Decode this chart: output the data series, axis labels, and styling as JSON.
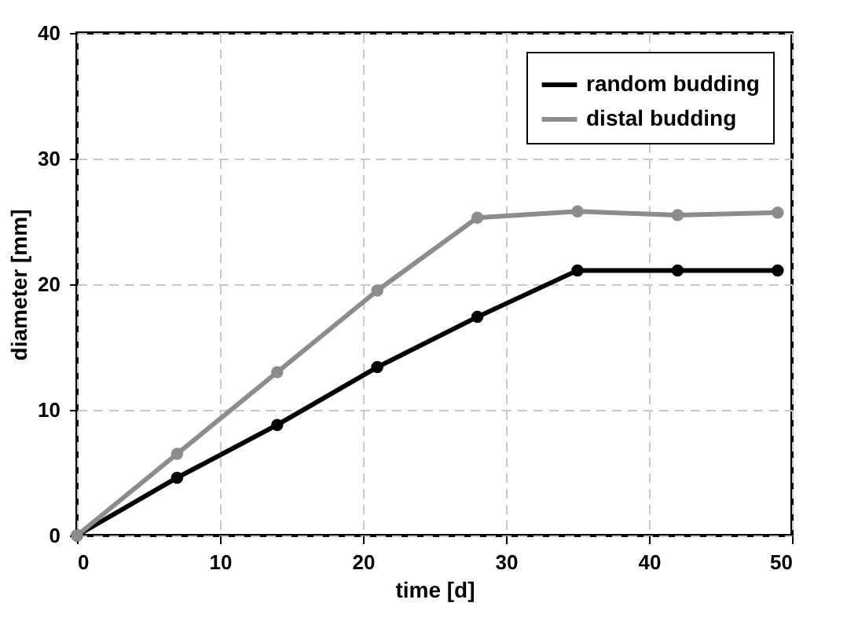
{
  "chart_data": {
    "type": "line",
    "xlabel": "time [d]",
    "ylabel": "diameter [mm]",
    "x": [
      0,
      7,
      14,
      21,
      28,
      35,
      42,
      49
    ],
    "series": [
      {
        "name": "random budding",
        "color": "#000000",
        "values": [
          0,
          4.6,
          8.8,
          13.4,
          17.4,
          21.1,
          21.1,
          21.1
        ]
      },
      {
        "name": "distal budding",
        "color": "#8c8c8c",
        "values": [
          0,
          6.5,
          13.0,
          19.5,
          25.3,
          25.8,
          25.5,
          25.7
        ]
      }
    ],
    "xlim": [
      0,
      50
    ],
    "xticks": [
      0,
      10,
      20,
      30,
      40,
      50
    ],
    "ylim": [
      0,
      40
    ],
    "yticks": [
      0,
      10,
      20,
      30,
      40
    ],
    "grid": true,
    "legend": "top right",
    "marker": "circle",
    "line_style": "solid"
  }
}
